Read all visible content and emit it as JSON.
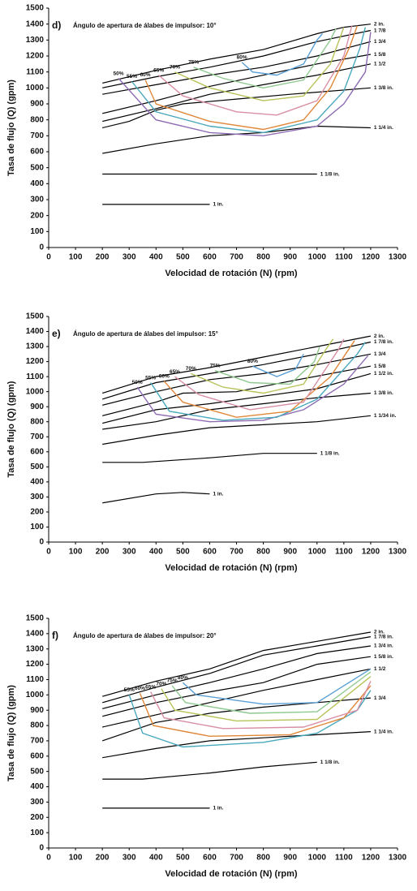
{
  "chart_data": [
    {
      "type": "line",
      "panel": "d)",
      "title": "Ángulo de apertura de álabes de impulsor: 10°",
      "xlabel": "Velocidad de rotación (N) (rpm)",
      "ylabel": "Tasa de flujo (Q) (gpm)",
      "xlim": [
        0,
        1300
      ],
      "ylim": [
        0,
        1500
      ],
      "xticks": [
        0,
        100,
        200,
        300,
        400,
        500,
        600,
        700,
        800,
        900,
        1000,
        1100,
        1200,
        1300
      ],
      "yticks": [
        0,
        100,
        200,
        300,
        400,
        500,
        600,
        700,
        800,
        900,
        1000,
        1100,
        1200,
        1300,
        1400,
        1500
      ],
      "series": [
        {
          "name": "2 in.",
          "color": "#000000",
          "x": [
            200,
            400,
            600,
            800,
            1000,
            1100,
            1200
          ],
          "values": [
            1030,
            1110,
            1180,
            1240,
            1340,
            1380,
            1400
          ]
        },
        {
          "name": "1 7/8",
          "color": "#000000",
          "x": [
            200,
            400,
            600,
            800,
            1000,
            1200
          ],
          "values": [
            1000,
            1070,
            1130,
            1200,
            1290,
            1360
          ]
        },
        {
          "name": "1 3/4",
          "color": "#000000",
          "x": [
            200,
            400,
            600,
            800,
            1000,
            1200
          ],
          "values": [
            960,
            1020,
            1080,
            1130,
            1200,
            1290
          ]
        },
        {
          "name": "1 5/8",
          "color": "#000000",
          "x": [
            200,
            400,
            600,
            800,
            1000,
            1200
          ],
          "values": [
            840,
            920,
            1010,
            1080,
            1150,
            1210
          ]
        },
        {
          "name": "1 1/2",
          "color": "#000000",
          "x": [
            200,
            400,
            600,
            800,
            1000,
            1200
          ],
          "values": [
            790,
            870,
            960,
            1020,
            1080,
            1150
          ]
        },
        {
          "name": "1 3/8 in.",
          "color": "#000000",
          "x": [
            200,
            300,
            400,
            500,
            700,
            900,
            1200
          ],
          "values": [
            750,
            790,
            860,
            900,
            930,
            960,
            1000
          ]
        },
        {
          "name": "1 1/4 in.",
          "color": "#000000",
          "x": [
            200,
            400,
            600,
            800,
            1000,
            1200
          ],
          "values": [
            590,
            650,
            700,
            720,
            760,
            750
          ]
        },
        {
          "name": "1 1/8 in.",
          "color": "#000000",
          "x": [
            200,
            1000
          ],
          "values": [
            460,
            460
          ]
        },
        {
          "name": "1 in.",
          "color": "#000000",
          "x": [
            200,
            600
          ],
          "values": [
            270,
            270
          ]
        },
        {
          "name": "50%",
          "color": "#8e6bb3",
          "x": [
            260,
            400,
            600,
            800,
            1000,
            1100,
            1180,
            1200
          ],
          "values": [
            1060,
            800,
            720,
            700,
            760,
            900,
            1100,
            1350
          ]
        },
        {
          "name": "55%",
          "color": "#4aa8bd",
          "x": [
            310,
            400,
            600,
            800,
            1000,
            1100,
            1160,
            1180
          ],
          "values": [
            1040,
            850,
            760,
            720,
            800,
            980,
            1250,
            1380
          ]
        },
        {
          "name": "60%",
          "color": "#e0883a",
          "x": [
            360,
            400,
            600,
            800,
            950,
            1050,
            1120,
            1150
          ],
          "values": [
            1050,
            900,
            790,
            740,
            800,
            1000,
            1250,
            1390
          ]
        },
        {
          "name": "65%",
          "color": "#d98fa3",
          "x": [
            410,
            500,
            700,
            850,
            1000,
            1100,
            1130
          ],
          "values": [
            1080,
            950,
            850,
            830,
            920,
            1200,
            1390
          ]
        },
        {
          "name": "70%",
          "color": "#b8c35a",
          "x": [
            470,
            600,
            800,
            950,
            1050,
            1100
          ],
          "values": [
            1100,
            1000,
            920,
            950,
            1150,
            1380
          ]
        },
        {
          "name": "75%",
          "color": "#8fc98f",
          "x": [
            540,
            650,
            800,
            950,
            1050,
            1070
          ],
          "values": [
            1130,
            1060,
            1000,
            1050,
            1300,
            1370
          ]
        },
        {
          "name": "80%",
          "color": "#5a9fd4",
          "x": [
            720,
            760,
            850,
            950,
            1000,
            1020
          ],
          "values": [
            1160,
            1100,
            1080,
            1150,
            1300,
            1340
          ]
        }
      ]
    },
    {
      "type": "line",
      "panel": "e)",
      "title": "Ángulo de apertura de álabes del impulsor: 15°",
      "xlabel": "Velocidad de rotación (N) (rpm)",
      "ylabel": "Tasa de flujo (Q) (gpm)",
      "xlim": [
        0,
        1300
      ],
      "ylim": [
        0,
        1500
      ],
      "xticks": [
        0,
        100,
        200,
        300,
        400,
        500,
        600,
        700,
        800,
        900,
        1000,
        1100,
        1200,
        1300
      ],
      "yticks": [
        0,
        100,
        200,
        300,
        400,
        500,
        600,
        700,
        800,
        900,
        1000,
        1100,
        1200,
        1300,
        1400,
        1500
      ],
      "series": [
        {
          "name": "2 in.",
          "color": "#000000",
          "x": [
            200,
            400,
            600,
            800,
            1000,
            1200
          ],
          "values": [
            990,
            1100,
            1160,
            1230,
            1300,
            1370
          ]
        },
        {
          "name": "1 7/8 in.",
          "color": "#000000",
          "x": [
            200,
            400,
            600,
            800,
            1000,
            1200
          ],
          "values": [
            950,
            1060,
            1120,
            1180,
            1250,
            1330
          ]
        },
        {
          "name": "1 3/4",
          "color": "#000000",
          "x": [
            200,
            400,
            600,
            800,
            1000,
            1200
          ],
          "values": [
            910,
            1000,
            1080,
            1120,
            1180,
            1250
          ]
        },
        {
          "name": "1 5/8",
          "color": "#000000",
          "x": [
            200,
            400,
            500,
            700,
            900,
            1200
          ],
          "values": [
            840,
            930,
            990,
            1000,
            1070,
            1170
          ]
        },
        {
          "name": "1 1/2 in.",
          "color": "#000000",
          "x": [
            200,
            400,
            600,
            800,
            1000,
            1200
          ],
          "values": [
            790,
            880,
            920,
            970,
            1020,
            1120
          ]
        },
        {
          "name": "1 3/8 in.",
          "color": "#000000",
          "x": [
            200,
            400,
            600,
            800,
            1000,
            1200
          ],
          "values": [
            750,
            800,
            880,
            920,
            960,
            990
          ]
        },
        {
          "name": "1 1/34 in.",
          "color": "#000000",
          "x": [
            200,
            400,
            600,
            800,
            1000,
            1200
          ],
          "values": [
            650,
            710,
            760,
            780,
            800,
            840
          ]
        },
        {
          "name": "1 1/8 in.",
          "color": "#000000",
          "x": [
            200,
            350,
            600,
            800,
            1000
          ],
          "values": [
            530,
            530,
            560,
            590,
            590
          ]
        },
        {
          "name": "1 in.",
          "color": "#000000",
          "x": [
            200,
            400,
            500,
            600
          ],
          "values": [
            260,
            320,
            330,
            320
          ]
        },
        {
          "name": "50%",
          "color": "#8e6bb3",
          "x": [
            330,
            400,
            600,
            800,
            950,
            1100,
            1190
          ],
          "values": [
            1030,
            850,
            800,
            810,
            880,
            1050,
            1240
          ]
        },
        {
          "name": "55%",
          "color": "#4aa8bd",
          "x": [
            380,
            450,
            650,
            850,
            1000,
            1150,
            1180
          ],
          "values": [
            1060,
            870,
            810,
            830,
            950,
            1250,
            1330
          ]
        },
        {
          "name": "60%",
          "color": "#e0883a",
          "x": [
            430,
            500,
            700,
            900,
            1050,
            1140
          ],
          "values": [
            1070,
            930,
            830,
            870,
            1100,
            1340
          ]
        },
        {
          "name": "65%",
          "color": "#d98fa3",
          "x": [
            470,
            560,
            750,
            950,
            1080,
            1100
          ],
          "values": [
            1100,
            980,
            880,
            930,
            1280,
            1350
          ]
        },
        {
          "name": "70%",
          "color": "#b8c35a",
          "x": [
            530,
            650,
            800,
            950,
            1040,
            1060
          ],
          "values": [
            1120,
            1030,
            990,
            1050,
            1300,
            1350
          ]
        },
        {
          "name": "75%",
          "color": "#8fc98f",
          "x": [
            620,
            750,
            900,
            990,
            1010
          ],
          "values": [
            1140,
            1060,
            1050,
            1200,
            1300
          ]
        },
        {
          "name": "80%",
          "color": "#5a9fd4",
          "x": [
            760,
            850,
            920,
            950
          ],
          "values": [
            1170,
            1100,
            1150,
            1250
          ]
        }
      ]
    },
    {
      "type": "line",
      "panel": "f)",
      "title": "Ángulo de apertura de álabes de impulsor: 20°",
      "xlabel": "Velocidad de rotación (N) (rpm)",
      "ylabel": "Tasa de flujo (Q) (gpm)",
      "xlim": [
        0,
        1300
      ],
      "ylim": [
        0,
        1500
      ],
      "xticks": [
        0,
        100,
        200,
        300,
        400,
        500,
        600,
        700,
        800,
        900,
        1000,
        1100,
        1200,
        1300
      ],
      "yticks": [
        0,
        100,
        200,
        300,
        400,
        500,
        600,
        700,
        800,
        900,
        1000,
        1100,
        1200,
        1300,
        1400,
        1500
      ],
      "series": [
        {
          "name": "2 in.",
          "color": "#000000",
          "x": [
            200,
            400,
            600,
            800,
            1000,
            1200
          ],
          "values": [
            990,
            1090,
            1170,
            1290,
            1350,
            1410
          ]
        },
        {
          "name": "1 7/8 in.",
          "color": "#000000",
          "x": [
            200,
            400,
            600,
            800,
            1000,
            1200
          ],
          "values": [
            950,
            1050,
            1140,
            1260,
            1320,
            1380
          ]
        },
        {
          "name": "1 3/4 in.",
          "color": "#000000",
          "x": [
            200,
            400,
            600,
            800,
            1000,
            1200
          ],
          "values": [
            910,
            1000,
            1080,
            1170,
            1270,
            1320
          ]
        },
        {
          "name": "1 5/8 in.",
          "color": "#000000",
          "x": [
            200,
            400,
            600,
            800,
            1000,
            1200
          ],
          "values": [
            860,
            950,
            1020,
            1080,
            1200,
            1250
          ]
        },
        {
          "name": "1 1/2",
          "color": "#000000",
          "x": [
            200,
            400,
            600,
            800,
            1000,
            1200
          ],
          "values": [
            790,
            870,
            950,
            1030,
            1100,
            1170
          ]
        },
        {
          "name": "1 3/4",
          "color": "#000000",
          "x": [
            200,
            400,
            600,
            800,
            1000,
            1200
          ],
          "values": [
            700,
            820,
            880,
            920,
            950,
            980
          ]
        },
        {
          "name": "1 1/4 in.",
          "color": "#000000",
          "x": [
            200,
            400,
            600,
            800,
            1000,
            1200
          ],
          "values": [
            590,
            650,
            700,
            720,
            740,
            760
          ]
        },
        {
          "name": "1 1/8 in.",
          "color": "#000000",
          "x": [
            200,
            350,
            600,
            800,
            1000
          ],
          "values": [
            450,
            450,
            490,
            530,
            560
          ]
        },
        {
          "name": "1 in.",
          "color": "#000000",
          "x": [
            200,
            600
          ],
          "values": [
            260,
            260
          ]
        },
        {
          "name": "55%",
          "color": "#4aa8bd",
          "x": [
            300,
            350,
            500,
            800,
            1000,
            1150,
            1200
          ],
          "values": [
            1000,
            750,
            660,
            690,
            750,
            900,
            1030
          ]
        },
        {
          "name": "60%",
          "color": "#e0883a",
          "x": [
            340,
            390,
            600,
            900,
            1100,
            1200
          ],
          "values": [
            1010,
            800,
            730,
            740,
            850,
            1060
          ]
        },
        {
          "name": "65%",
          "color": "#d98fa3",
          "x": [
            380,
            430,
            650,
            950,
            1150,
            1200
          ],
          "values": [
            1020,
            850,
            780,
            790,
            900,
            1090
          ]
        },
        {
          "name": "70%",
          "color": "#b8c35a",
          "x": [
            420,
            470,
            700,
            1000,
            1200
          ],
          "values": [
            1040,
            900,
            830,
            840,
            1120
          ]
        },
        {
          "name": "75%",
          "color": "#8fc98f",
          "x": [
            460,
            510,
            750,
            1000,
            1200
          ],
          "values": [
            1060,
            950,
            880,
            890,
            1150
          ]
        },
        {
          "name": "80%",
          "color": "#5a9fd4",
          "x": [
            500,
            550,
            800,
            1000,
            1200
          ],
          "values": [
            1080,
            1000,
            940,
            950,
            1170
          ]
        }
      ]
    }
  ]
}
